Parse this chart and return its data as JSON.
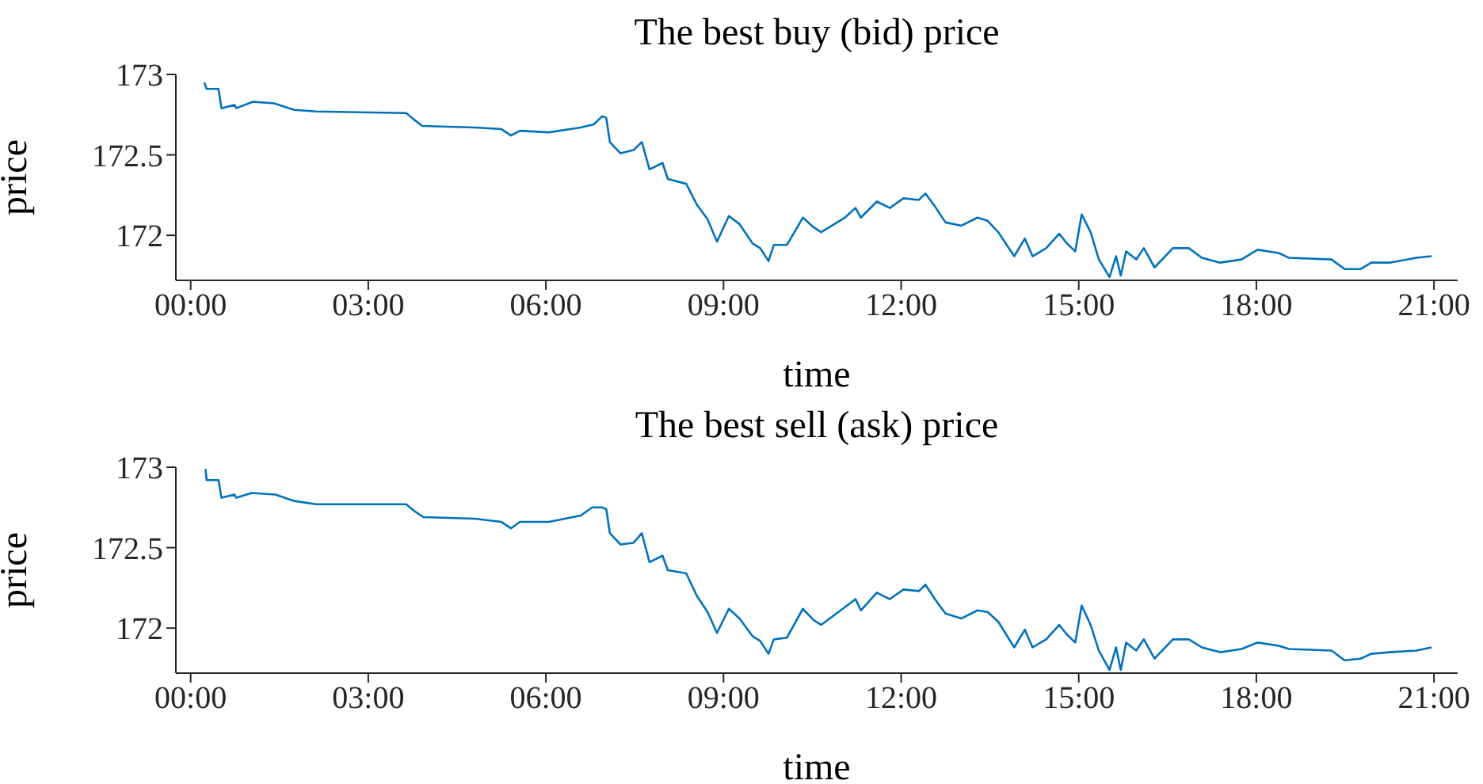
{
  "chart_data": [
    {
      "type": "line",
      "title": "The best buy (bid) price",
      "xlabel": "time",
      "ylabel": "price",
      "color": "#0072bd",
      "x": [
        0.23,
        0.27,
        0.47,
        0.52,
        0.74,
        0.77,
        1.05,
        1.41,
        1.75,
        2.12,
        3.64,
        3.77,
        3.91,
        4.8,
        5.25,
        5.41,
        5.56,
        6.05,
        6.59,
        6.81,
        6.95,
        7.02,
        7.08,
        7.26,
        7.48,
        7.62,
        7.75,
        7.97,
        8.06,
        8.37,
        8.55,
        8.73,
        8.89,
        9.09,
        9.27,
        9.49,
        9.62,
        9.76,
        9.85,
        10.07,
        10.34,
        10.52,
        10.65,
        11.05,
        11.23,
        11.32,
        11.59,
        11.81,
        12.04,
        12.3,
        12.41,
        12.57,
        12.75,
        13.02,
        13.29,
        13.46,
        13.64,
        13.91,
        14.09,
        14.22,
        14.45,
        14.67,
        14.8,
        14.94,
        15.05,
        15.2,
        15.34,
        15.52,
        15.63,
        15.71,
        15.8,
        15.97,
        16.1,
        16.28,
        16.59,
        16.86,
        17.08,
        17.39,
        17.75,
        18.02,
        18.38,
        18.55,
        19.27,
        19.49,
        19.76,
        19.94,
        20.25,
        20.7,
        20.96
      ],
      "values": [
        172.95,
        172.91,
        172.91,
        172.79,
        172.81,
        172.79,
        172.83,
        172.82,
        172.78,
        172.77,
        172.76,
        172.72,
        172.68,
        172.67,
        172.66,
        172.62,
        172.65,
        172.64,
        172.67,
        172.69,
        172.74,
        172.73,
        172.58,
        172.51,
        172.53,
        172.58,
        172.41,
        172.45,
        172.35,
        172.32,
        172.19,
        172.1,
        171.96,
        172.12,
        172.07,
        171.95,
        171.92,
        171.84,
        171.94,
        171.94,
        172.11,
        172.05,
        172.02,
        172.11,
        172.17,
        172.11,
        172.21,
        172.17,
        172.23,
        172.22,
        172.26,
        172.18,
        172.08,
        172.06,
        172.11,
        172.09,
        172.02,
        171.87,
        171.98,
        171.87,
        171.92,
        172.01,
        171.95,
        171.9,
        172.13,
        172.02,
        171.85,
        171.74,
        171.87,
        171.75,
        171.9,
        171.85,
        171.92,
        171.8,
        171.92,
        171.92,
        171.86,
        171.83,
        171.85,
        171.91,
        171.89,
        171.86,
        171.85,
        171.79,
        171.79,
        171.83,
        171.83,
        171.86,
        171.87
      ],
      "xlim": [
        -0.25,
        21.4
      ],
      "ylim": [
        171.72,
        173
      ],
      "xticks": [
        {
          "value": 0,
          "label": "00:00"
        },
        {
          "value": 3,
          "label": "03:00"
        },
        {
          "value": 6,
          "label": "06:00"
        },
        {
          "value": 9,
          "label": "09:00"
        },
        {
          "value": 12,
          "label": "12:00"
        },
        {
          "value": 15,
          "label": "15:00"
        },
        {
          "value": 18,
          "label": "18:00"
        },
        {
          "value": 21,
          "label": "21:00"
        }
      ],
      "yticks": [
        172,
        172.5,
        173
      ]
    },
    {
      "type": "line",
      "title": "The best sell (ask) price",
      "xlabel": "time",
      "ylabel": "price",
      "color": "#0072bd",
      "x": [
        0.25,
        0.27,
        0.47,
        0.52,
        0.74,
        0.77,
        1.03,
        1.43,
        1.75,
        2.12,
        3.64,
        3.77,
        3.93,
        4.8,
        5.25,
        5.41,
        5.56,
        6.05,
        6.59,
        6.78,
        6.95,
        7.02,
        7.08,
        7.26,
        7.48,
        7.62,
        7.75,
        7.97,
        8.06,
        8.37,
        8.55,
        8.73,
        8.89,
        9.09,
        9.27,
        9.49,
        9.62,
        9.76,
        9.85,
        10.07,
        10.34,
        10.52,
        10.65,
        11.05,
        11.23,
        11.32,
        11.59,
        11.81,
        12.04,
        12.3,
        12.41,
        12.57,
        12.75,
        13.02,
        13.29,
        13.46,
        13.64,
        13.91,
        14.09,
        14.22,
        14.45,
        14.67,
        14.8,
        14.94,
        15.05,
        15.2,
        15.34,
        15.52,
        15.63,
        15.71,
        15.8,
        15.97,
        16.1,
        16.28,
        16.59,
        16.86,
        17.08,
        17.39,
        17.75,
        18.02,
        18.38,
        18.55,
        19.27,
        19.49,
        19.76,
        19.94,
        20.25,
        20.7,
        20.96
      ],
      "values": [
        172.99,
        172.92,
        172.92,
        172.81,
        172.83,
        172.81,
        172.84,
        172.83,
        172.79,
        172.77,
        172.77,
        172.73,
        172.69,
        172.68,
        172.66,
        172.62,
        172.66,
        172.66,
        172.7,
        172.75,
        172.75,
        172.74,
        172.59,
        172.52,
        172.53,
        172.59,
        172.41,
        172.45,
        172.36,
        172.34,
        172.2,
        172.1,
        171.97,
        172.12,
        172.06,
        171.95,
        171.92,
        171.84,
        171.93,
        171.94,
        172.12,
        172.05,
        172.02,
        172.13,
        172.18,
        172.11,
        172.22,
        172.18,
        172.24,
        172.23,
        172.27,
        172.18,
        172.09,
        172.06,
        172.11,
        172.1,
        172.04,
        171.88,
        171.99,
        171.88,
        171.93,
        172.02,
        171.96,
        171.91,
        172.14,
        172.02,
        171.86,
        171.74,
        171.88,
        171.74,
        171.91,
        171.86,
        171.93,
        171.81,
        171.93,
        171.93,
        171.88,
        171.85,
        171.87,
        171.91,
        171.89,
        171.87,
        171.86,
        171.8,
        171.81,
        171.84,
        171.85,
        171.86,
        171.88
      ],
      "xlim": [
        -0.25,
        21.4
      ],
      "ylim": [
        171.72,
        173
      ],
      "xticks": [
        {
          "value": 0,
          "label": "00:00"
        },
        {
          "value": 3,
          "label": "03:00"
        },
        {
          "value": 6,
          "label": "06:00"
        },
        {
          "value": 9,
          "label": "09:00"
        },
        {
          "value": 12,
          "label": "12:00"
        },
        {
          "value": 15,
          "label": "15:00"
        },
        {
          "value": 18,
          "label": "18:00"
        },
        {
          "value": 21,
          "label": "21:00"
        }
      ],
      "yticks": [
        172,
        172.5,
        173
      ]
    }
  ]
}
